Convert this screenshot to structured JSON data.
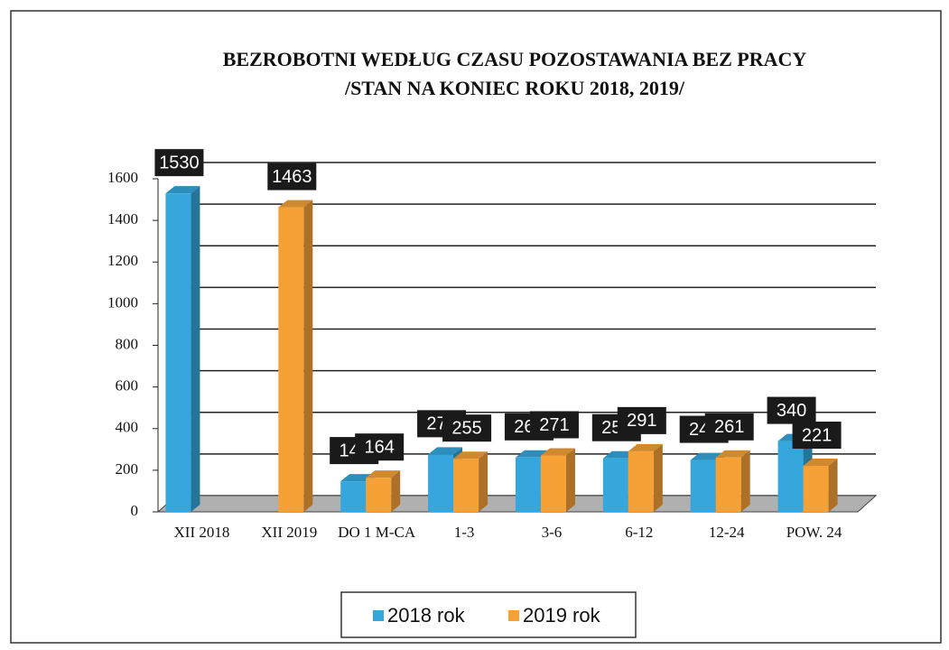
{
  "chart_data": {
    "type": "bar3d",
    "title": "BEZROBOTNI WEDŁUG CZASU POZOSTAWANIA BEZ PRACY",
    "subtitle": "/STAN NA KONIEC ROKU 2018, 2019/",
    "categories": [
      "XII 2018",
      "XII 2019",
      "DO 1 M-CA",
      "1-3",
      "3-6",
      "6-12",
      "12-24",
      "POW. 24"
    ],
    "series": [
      {
        "name": "2018 rok",
        "color": "#35a7dc",
        "values": [
          1530,
          null,
          147,
          276,
          261,
          257,
          249,
          340
        ]
      },
      {
        "name": "2019 rok",
        "color": "#f5a136",
        "values": [
          null,
          1463,
          164,
          255,
          271,
          291,
          261,
          221
        ]
      }
    ],
    "ylim": [
      0,
      1600
    ],
    "yticks": [
      0,
      200,
      400,
      600,
      800,
      1000,
      1200,
      1400,
      1600
    ],
    "grid": true
  }
}
